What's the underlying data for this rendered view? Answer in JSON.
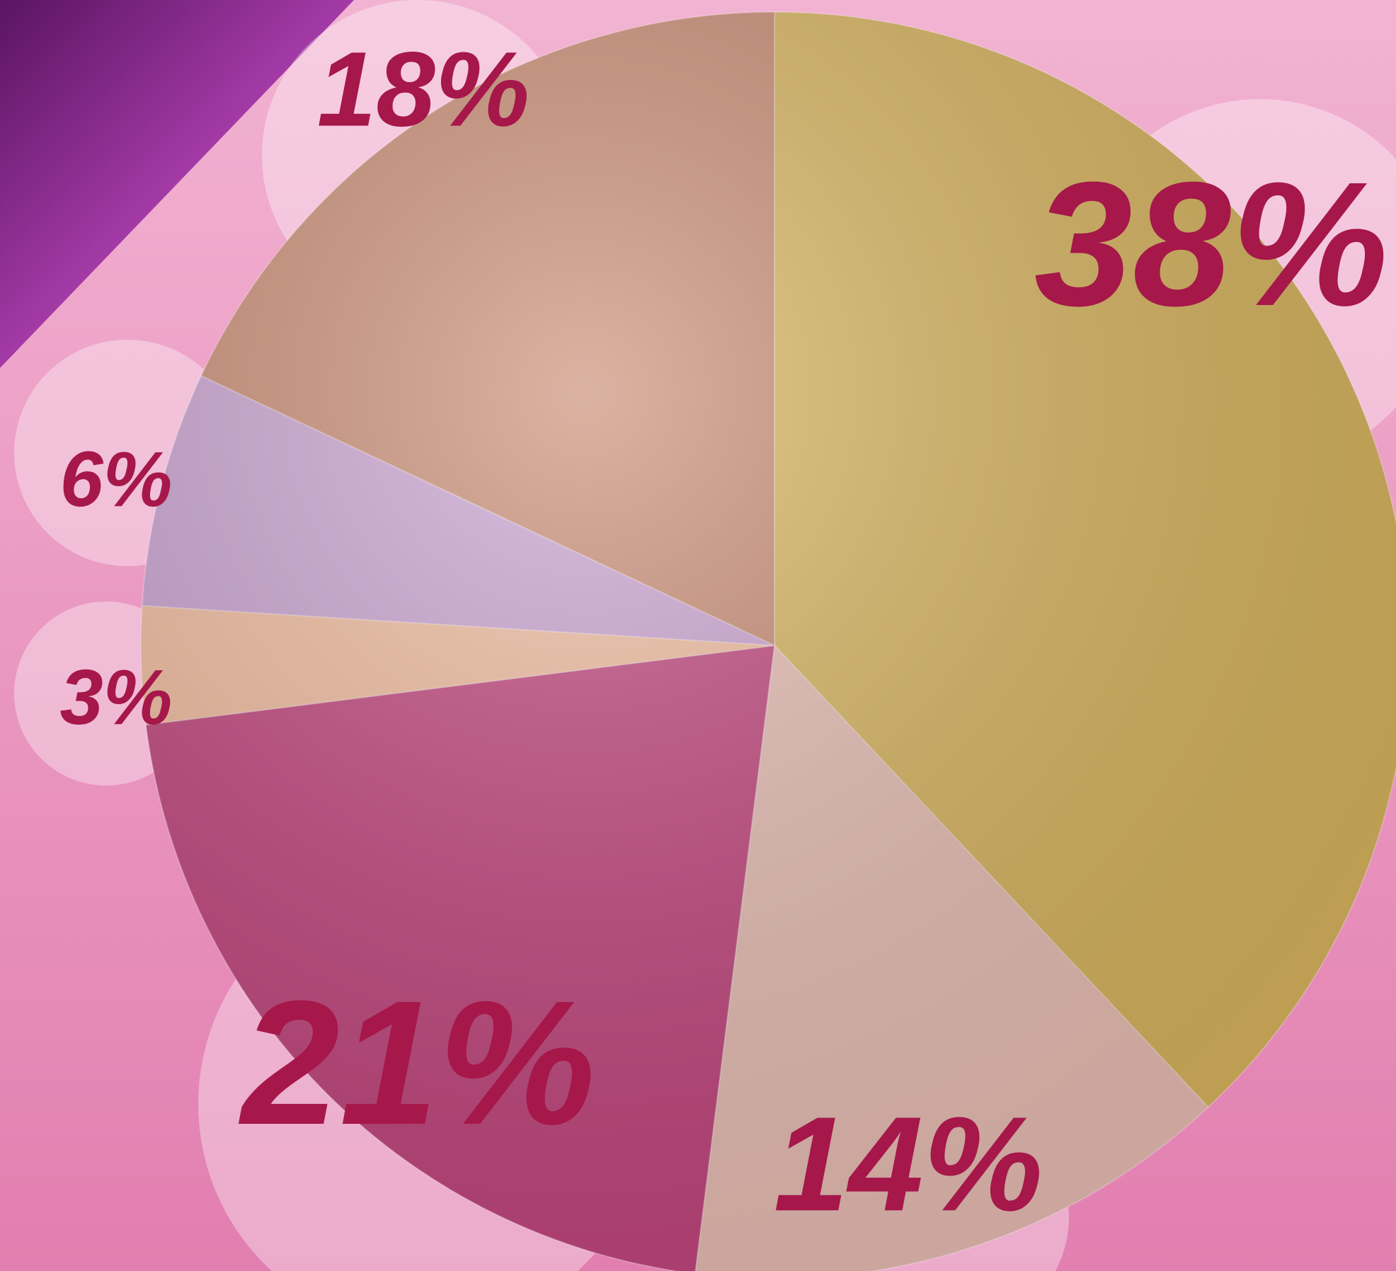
{
  "chart_data": {
    "type": "pie",
    "values": [
      38,
      14,
      21,
      3,
      6,
      18
    ],
    "value_labels": [
      "38%",
      "14%",
      "21%",
      "3%",
      "6%",
      "18%"
    ],
    "colors": [
      "#d8b45c",
      "#e9beb4",
      "#c2437c",
      "#f3bc9e",
      "#cba2d2",
      "#c98a70"
    ]
  }
}
